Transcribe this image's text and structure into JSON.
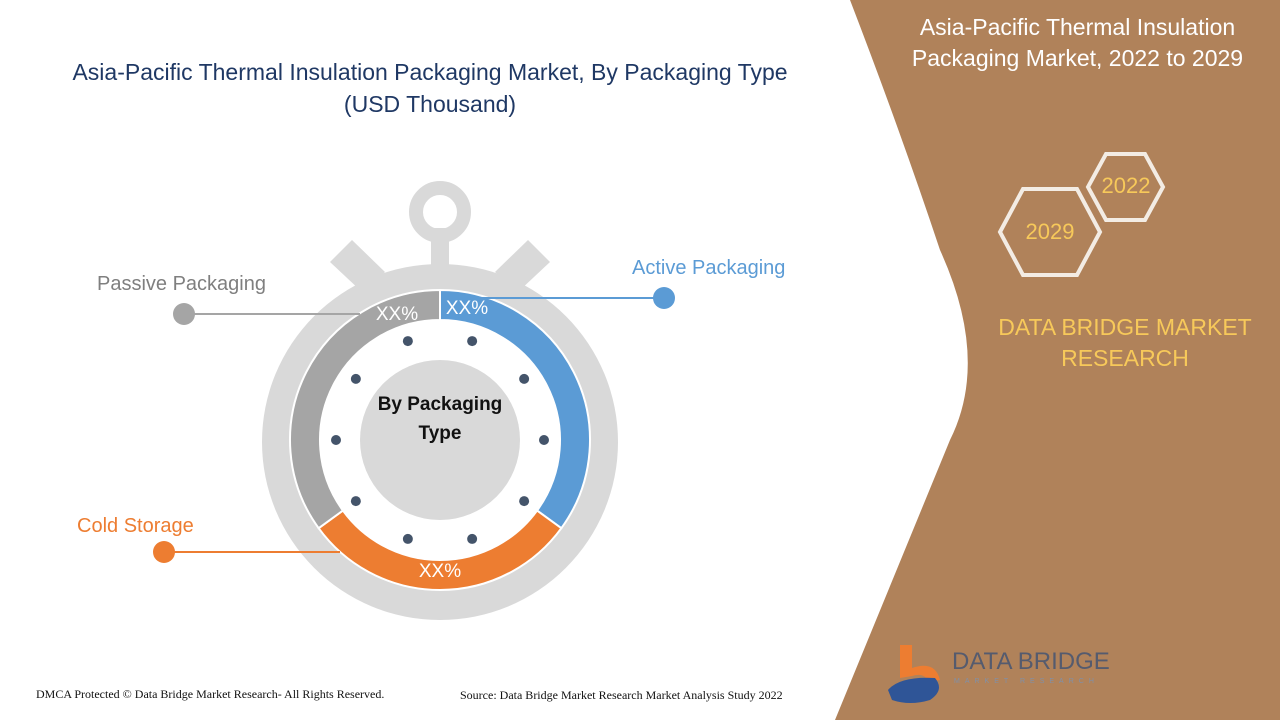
{
  "title": "Asia-Pacific Thermal Insulation Packaging Market, By Packaging Type (USD Thousand)",
  "side_panel": {
    "title": "Asia-Pacific Thermal Insulation Packaging Market, 2022 to 2029",
    "years": [
      "2022",
      "2029"
    ],
    "brand": "DATA BRIDGE MARKET RESEARCH",
    "logo_name": "DATA BRIDGE",
    "logo_sub": "MARKET RESEARCH",
    "color": "#b0825a"
  },
  "footer": {
    "copyright": "DMCA Protected © Data Bridge Market Research- All Rights Reserved.",
    "source": "Source: Data Bridge Market Research Market Analysis Study 2022"
  },
  "chart_data": {
    "type": "pie",
    "center_label": "By Packaging Type",
    "categories": [
      "Active Packaging",
      "Cold Storage",
      "Passive Packaging"
    ],
    "data_labels": [
      "XX%",
      "XX%",
      "XX%"
    ],
    "values": [
      35,
      30,
      35
    ],
    "colors": [
      "#5b9bd5",
      "#ed7d31",
      "#a5a5a5"
    ]
  }
}
